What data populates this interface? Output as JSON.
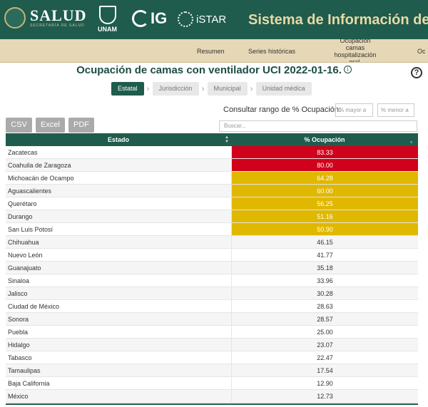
{
  "header": {
    "salud": "SALUD",
    "salud_sub": "SECRETARÍA DE SALUD",
    "unam": "UNAM",
    "ig": "IG",
    "istar": "iSTAR",
    "system_title": "Sistema de Información de la"
  },
  "nav": {
    "items": [
      "Resumen",
      "Series históricas",
      "Ocupación camas hospitalización gral.",
      "Oc"
    ]
  },
  "page": {
    "title": "Ocupación de camas con ventilador UCI 2022-01-16.",
    "info_glyph": "i",
    "help_glyph": "?"
  },
  "tabs": [
    "Estatal",
    "Jurisdicción",
    "Municipal",
    "Unidad médica"
  ],
  "range": {
    "label": "Consultar rango de % Ocupación:",
    "min_placeholder": "% mayor a",
    "max_placeholder": "% menor a"
  },
  "buttons": {
    "csv": "CSV",
    "excel": "Excel",
    "pdf": "PDF"
  },
  "search": {
    "placeholder": "Buscar..."
  },
  "table": {
    "headers": [
      "Estado",
      "% Ocupación"
    ],
    "colors": {
      "red": "#d0021b",
      "yellow": "#e0b800",
      "header": "#1f5c4d"
    },
    "rows": [
      {
        "estado": "Zacatecas",
        "ocupacion": "83.33",
        "level": "red"
      },
      {
        "estado": "Coahuila de Zaragoza",
        "ocupacion": "80.00",
        "level": "red"
      },
      {
        "estado": "Michoacán de Ocampo",
        "ocupacion": "64.28",
        "level": "yellow"
      },
      {
        "estado": "Aguascalientes",
        "ocupacion": "60.00",
        "level": "yellow"
      },
      {
        "estado": "Querétaro",
        "ocupacion": "56.25",
        "level": "yellow"
      },
      {
        "estado": "Durango",
        "ocupacion": "51.16",
        "level": "yellow"
      },
      {
        "estado": "San Luis Potosí",
        "ocupacion": "50.90",
        "level": "yellow"
      },
      {
        "estado": "Chihuahua",
        "ocupacion": "46.15",
        "level": "none"
      },
      {
        "estado": "Nuevo León",
        "ocupacion": "41.77",
        "level": "none"
      },
      {
        "estado": "Guanajuato",
        "ocupacion": "35.18",
        "level": "none"
      },
      {
        "estado": "Sinaloa",
        "ocupacion": "33.96",
        "level": "none"
      },
      {
        "estado": "Jalisco",
        "ocupacion": "30.28",
        "level": "none"
      },
      {
        "estado": "Ciudad de México",
        "ocupacion": "28.63",
        "level": "none"
      },
      {
        "estado": "Sonora",
        "ocupacion": "28.57",
        "level": "none"
      },
      {
        "estado": "Puebla",
        "ocupacion": "25.00",
        "level": "none"
      },
      {
        "estado": "Hidalgo",
        "ocupacion": "23.07",
        "level": "none"
      },
      {
        "estado": "Tabasco",
        "ocupacion": "22.47",
        "level": "none"
      },
      {
        "estado": "Tamaulipas",
        "ocupacion": "17.54",
        "level": "none"
      },
      {
        "estado": "Baja California",
        "ocupacion": "12.90",
        "level": "none"
      },
      {
        "estado": "México",
        "ocupacion": "12.73",
        "level": "none"
      }
    ]
  }
}
